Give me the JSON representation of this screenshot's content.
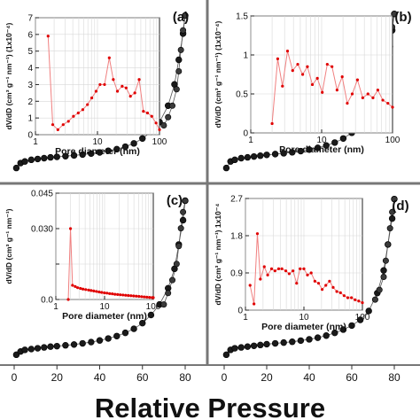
{
  "figure": {
    "xlabel": "Relative Pressure",
    "x_ticks": [
      "0",
      "20",
      "40",
      "60",
      "80"
    ]
  },
  "chart_data": [
    {
      "type": "scatter",
      "panel": "(a)",
      "xlim": [
        0,
        90
      ],
      "isotherm": {
        "adsorption": [
          [
            1,
            0.04
          ],
          [
            3,
            0.07
          ],
          [
            5,
            0.08
          ],
          [
            8,
            0.09
          ],
          [
            11,
            0.095
          ],
          [
            14,
            0.1
          ],
          [
            17,
            0.105
          ],
          [
            20,
            0.108
          ],
          [
            24,
            0.112
          ],
          [
            28,
            0.117
          ],
          [
            32,
            0.122
          ],
          [
            36,
            0.128
          ],
          [
            40,
            0.135
          ],
          [
            44,
            0.145
          ],
          [
            48,
            0.155
          ],
          [
            52,
            0.17
          ],
          [
            56,
            0.19
          ],
          [
            60,
            0.22
          ],
          [
            64,
            0.26
          ],
          [
            68,
            0.32
          ],
          [
            72,
            0.42
          ],
          [
            75,
            0.55
          ],
          [
            77,
            0.7
          ],
          [
            79,
            0.86
          ],
          [
            80,
            0.97
          ]
        ],
        "desorption": [
          [
            80,
            0.97
          ],
          [
            79,
            0.88
          ],
          [
            78,
            0.76
          ],
          [
            77,
            0.63
          ],
          [
            76,
            0.52
          ],
          [
            74,
            0.42
          ],
          [
            72,
            0.35
          ],
          [
            70,
            0.3
          ]
        ]
      },
      "inset": {
        "xlabel": "Pore diameter (nm)",
        "ylabel": "dV/dD (cm³ g⁻¹ nm⁻¹)",
        "ymult": "(1x10⁻⁴)",
        "xscale": "log",
        "xlim": [
          1,
          100
        ],
        "ylim": [
          0,
          7
        ],
        "x_ticks": [
          1,
          10,
          100
        ],
        "y_ticks": [
          0,
          1,
          2,
          3,
          4,
          5,
          6,
          7
        ],
        "points": [
          [
            1.6,
            5.9
          ],
          [
            1.9,
            0.6
          ],
          [
            2.3,
            0.3
          ],
          [
            2.8,
            0.6
          ],
          [
            3.4,
            0.8
          ],
          [
            4.1,
            1.1
          ],
          [
            4.9,
            1.3
          ],
          [
            5.8,
            1.5
          ],
          [
            6.9,
            1.8
          ],
          [
            8.1,
            2.2
          ],
          [
            9.5,
            2.6
          ],
          [
            11,
            3.0
          ],
          [
            13,
            3.0
          ],
          [
            15.5,
            4.6
          ],
          [
            18,
            3.3
          ],
          [
            21,
            2.6
          ],
          [
            25,
            2.9
          ],
          [
            29,
            2.8
          ],
          [
            34,
            2.3
          ],
          [
            40,
            2.5
          ],
          [
            47,
            3.3
          ],
          [
            55,
            1.4
          ],
          [
            64,
            1.3
          ],
          [
            75,
            1.1
          ],
          [
            88,
            0.7
          ],
          [
            100,
            0.3
          ]
        ]
      }
    },
    {
      "type": "scatter",
      "panel": "(b)",
      "xlim": [
        0,
        90
      ],
      "isotherm": {
        "adsorption": [
          [
            1,
            0.04
          ],
          [
            3,
            0.08
          ],
          [
            5,
            0.09
          ],
          [
            8,
            0.1
          ],
          [
            11,
            0.105
          ],
          [
            14,
            0.11
          ],
          [
            17,
            0.115
          ],
          [
            20,
            0.12
          ],
          [
            24,
            0.125
          ],
          [
            28,
            0.13
          ],
          [
            32,
            0.136
          ],
          [
            36,
            0.143
          ],
          [
            40,
            0.152
          ],
          [
            44,
            0.163
          ],
          [
            48,
            0.177
          ],
          [
            52,
            0.195
          ],
          [
            56,
            0.22
          ],
          [
            60,
            0.255
          ],
          [
            64,
            0.3
          ],
          [
            68,
            0.36
          ],
          [
            72,
            0.45
          ],
          [
            75,
            0.57
          ],
          [
            77,
            0.72
          ],
          [
            79,
            0.88
          ],
          [
            80,
            0.98
          ]
        ],
        "desorption": [
          [
            80,
            0.98
          ],
          [
            79,
            0.9
          ],
          [
            78,
            0.78
          ],
          [
            77,
            0.66
          ],
          [
            76,
            0.55
          ],
          [
            74,
            0.45
          ],
          [
            72,
            0.38
          ]
        ]
      },
      "inset": {
        "xlabel": "Pore diameter (nm)",
        "ylabel": "dV/dD (cm³ g⁻¹ nm⁻¹)",
        "ymult": "(1x10⁻⁴)",
        "xscale": "log",
        "xlim": [
          1,
          100
        ],
        "ylim": [
          0,
          1.5
        ],
        "x_ticks": [
          1,
          10,
          100
        ],
        "y_ticks": [
          0,
          0.5,
          1,
          1.5
        ],
        "y_tick_labels": [
          "0",
          "0.5",
          "1",
          "1.5"
        ],
        "points": [
          [
            2,
            0.12
          ],
          [
            2.4,
            0.95
          ],
          [
            2.8,
            0.6
          ],
          [
            3.3,
            1.05
          ],
          [
            3.9,
            0.8
          ],
          [
            4.6,
            0.88
          ],
          [
            5.4,
            0.75
          ],
          [
            6.3,
            0.85
          ],
          [
            7.4,
            0.62
          ],
          [
            8.7,
            0.7
          ],
          [
            10.2,
            0.52
          ],
          [
            12,
            0.88
          ],
          [
            14,
            0.85
          ],
          [
            16.5,
            0.55
          ],
          [
            19.5,
            0.72
          ],
          [
            23,
            0.38
          ],
          [
            27,
            0.5
          ],
          [
            32,
            0.68
          ],
          [
            38,
            0.45
          ],
          [
            45,
            0.5
          ],
          [
            53,
            0.45
          ],
          [
            62,
            0.55
          ],
          [
            73,
            0.42
          ],
          [
            86,
            0.38
          ],
          [
            100,
            0.33
          ]
        ]
      }
    },
    {
      "type": "scatter",
      "panel": "(c)",
      "xlim": [
        0,
        90
      ],
      "isotherm": {
        "adsorption": [
          [
            1,
            0.02
          ],
          [
            3,
            0.04
          ],
          [
            5,
            0.05
          ],
          [
            8,
            0.055
          ],
          [
            11,
            0.06
          ],
          [
            14,
            0.065
          ],
          [
            17,
            0.07
          ],
          [
            20,
            0.073
          ],
          [
            24,
            0.078
          ],
          [
            28,
            0.083
          ],
          [
            32,
            0.09
          ],
          [
            36,
            0.098
          ],
          [
            40,
            0.108
          ],
          [
            44,
            0.12
          ],
          [
            48,
            0.135
          ],
          [
            52,
            0.155
          ],
          [
            56,
            0.18
          ],
          [
            60,
            0.215
          ],
          [
            64,
            0.265
          ],
          [
            68,
            0.33
          ],
          [
            72,
            0.43
          ],
          [
            75,
            0.55
          ],
          [
            77,
            0.7
          ],
          [
            79,
            0.85
          ],
          [
            80,
            0.97
          ]
        ],
        "desorption": [
          [
            80,
            0.97
          ],
          [
            79,
            0.9
          ],
          [
            78,
            0.8
          ],
          [
            77,
            0.69
          ],
          [
            76,
            0.58
          ],
          [
            74,
            0.48
          ],
          [
            72,
            0.4
          ],
          [
            70,
            0.33
          ]
        ]
      },
      "inset": {
        "xlabel": "Pore diameter (nm)",
        "ylabel": "dV/dD (cm³ g⁻¹ nm⁻¹)",
        "ymult": "",
        "xscale": "log",
        "xlim": [
          1,
          100
        ],
        "ylim": [
          0,
          0.045
        ],
        "x_ticks": [
          1,
          10,
          100
        ],
        "y_ticks": [
          0,
          0.015,
          0.03,
          0.045
        ],
        "y_tick_labels": [
          "0.0",
          "",
          "0.030",
          "0.045"
        ],
        "points": [
          [
            1.8,
            0.0
          ],
          [
            2.0,
            0.03
          ],
          [
            2.2,
            0.006
          ],
          [
            2.5,
            0.0055
          ],
          [
            2.8,
            0.005
          ],
          [
            3.2,
            0.0047
          ],
          [
            3.6,
            0.0044
          ],
          [
            4.1,
            0.0042
          ],
          [
            4.7,
            0.004
          ],
          [
            5.3,
            0.0038
          ],
          [
            6,
            0.0036
          ],
          [
            6.8,
            0.0034
          ],
          [
            7.7,
            0.0032
          ],
          [
            8.7,
            0.003
          ],
          [
            9.9,
            0.0028
          ],
          [
            11.2,
            0.0027
          ],
          [
            12.7,
            0.0025
          ],
          [
            14.4,
            0.0024
          ],
          [
            16.3,
            0.0022
          ],
          [
            18.5,
            0.0021
          ],
          [
            21,
            0.002
          ],
          [
            23.8,
            0.0019
          ],
          [
            27,
            0.0018
          ],
          [
            30.6,
            0.0017
          ],
          [
            34.7,
            0.0016
          ],
          [
            39.3,
            0.0015
          ],
          [
            44.6,
            0.0014
          ],
          [
            50.6,
            0.0013
          ],
          [
            57.4,
            0.0012
          ],
          [
            65,
            0.0011
          ],
          [
            73.7,
            0.001
          ],
          [
            83.6,
            0.0009
          ],
          [
            94.8,
            0.0008
          ],
          [
            100,
            0.0008
          ]
        ]
      }
    },
    {
      "type": "scatter",
      "panel": "(d)",
      "xlim": [
        0,
        90
      ],
      "isotherm": {
        "adsorption": [
          [
            1,
            0.02
          ],
          [
            3,
            0.05
          ],
          [
            5,
            0.06
          ],
          [
            8,
            0.065
          ],
          [
            11,
            0.07
          ],
          [
            14,
            0.075
          ],
          [
            17,
            0.08
          ],
          [
            20,
            0.085
          ],
          [
            24,
            0.09
          ],
          [
            28,
            0.095
          ],
          [
            32,
            0.1
          ],
          [
            36,
            0.107
          ],
          [
            40,
            0.115
          ],
          [
            44,
            0.125
          ],
          [
            48,
            0.138
          ],
          [
            52,
            0.155
          ],
          [
            56,
            0.175
          ],
          [
            60,
            0.2
          ],
          [
            64,
            0.235
          ],
          [
            68,
            0.29
          ],
          [
            72,
            0.4
          ],
          [
            75,
            0.54
          ],
          [
            77,
            0.7
          ],
          [
            79,
            0.86
          ],
          [
            80,
            0.98
          ]
        ],
        "desorption": [
          [
            80,
            0.98
          ],
          [
            79,
            0.9
          ],
          [
            78,
            0.8
          ],
          [
            77,
            0.7
          ],
          [
            76,
            0.6
          ],
          [
            75,
            0.5
          ],
          [
            73,
            0.42
          ],
          [
            71,
            0.36
          ]
        ]
      },
      "inset": {
        "xlabel": "Pore diameter (nm)",
        "ylabel": "dV/dD (cm³ g⁻¹ nm⁻¹)",
        "ymult": "1x10⁻⁴",
        "xscale": "log",
        "xlim": [
          1,
          100
        ],
        "ylim": [
          0,
          2.7
        ],
        "x_ticks": [
          1,
          10,
          100
        ],
        "y_ticks": [
          0,
          0.9,
          1.8,
          2.7
        ],
        "y_tick_labels": [
          "0",
          "0.9",
          "1.8",
          "2.7"
        ],
        "points": [
          [
            1.2,
            0.6
          ],
          [
            1.4,
            0.15
          ],
          [
            1.6,
            1.85
          ],
          [
            1.8,
            0.75
          ],
          [
            2.1,
            1.05
          ],
          [
            2.4,
            0.85
          ],
          [
            2.8,
            1.0
          ],
          [
            3.2,
            0.95
          ],
          [
            3.7,
            1.0
          ],
          [
            4.2,
            1.0
          ],
          [
            4.9,
            0.95
          ],
          [
            5.6,
            0.88
          ],
          [
            6.5,
            0.95
          ],
          [
            7.5,
            0.65
          ],
          [
            8.6,
            1.0
          ],
          [
            10,
            1.0
          ],
          [
            11.5,
            0.85
          ],
          [
            13.3,
            0.9
          ],
          [
            15.4,
            0.7
          ],
          [
            17.8,
            0.65
          ],
          [
            20.5,
            0.5
          ],
          [
            23.7,
            0.6
          ],
          [
            27.4,
            0.7
          ],
          [
            31.6,
            0.55
          ],
          [
            36.5,
            0.45
          ],
          [
            42.2,
            0.42
          ],
          [
            48.7,
            0.35
          ],
          [
            56.2,
            0.3
          ],
          [
            65,
            0.3
          ],
          [
            75,
            0.25
          ],
          [
            86.6,
            0.22
          ],
          [
            100,
            0.18
          ]
        ]
      }
    }
  ]
}
